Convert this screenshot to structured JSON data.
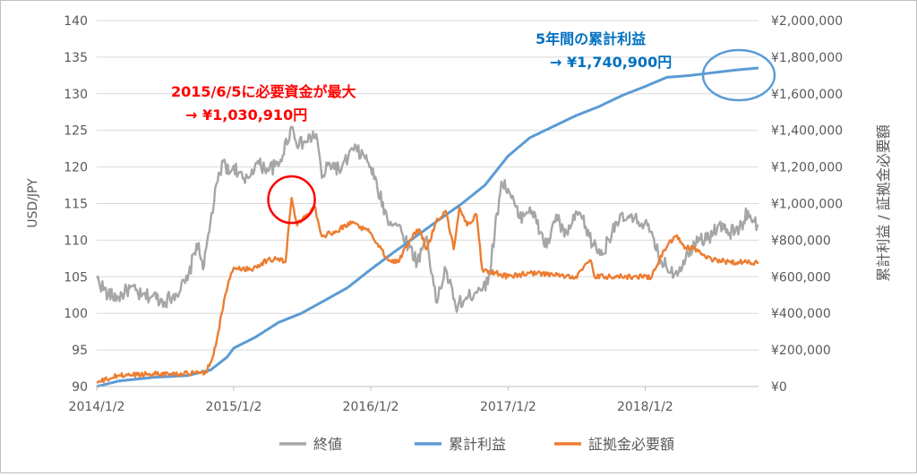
{
  "chart_data": {
    "type": "line",
    "x_ticks": [
      "2014/1/2",
      "2015/1/2",
      "2016/1/2",
      "2017/1/2",
      "2018/1/2"
    ],
    "x_range": [
      "2014-01-02",
      "2018-10-31"
    ],
    "y_left": {
      "label": "USD/JPY",
      "range": [
        90,
        140
      ],
      "ticks": [
        "90",
        "95",
        "100",
        "105",
        "110",
        "115",
        "120",
        "125",
        "130",
        "135",
        "140"
      ]
    },
    "y_right": {
      "label": "累計利益 / 証拠金必要額",
      "range": [
        0,
        2000000
      ],
      "ticks": [
        "¥0",
        "¥200,000",
        "¥400,000",
        "¥600,000",
        "¥800,000",
        "¥1,000,000",
        "¥1,200,000",
        "¥1,400,000",
        "¥1,600,000",
        "¥1,800,000",
        "¥2,000,000"
      ]
    },
    "grid": true,
    "legend_position": "bottom",
    "series": [
      {
        "name": "終値",
        "axis": "left",
        "color": "#a6a6a6",
        "points": [
          [
            "2014-01-02",
            104.8
          ],
          [
            "2014-02-01",
            102.5
          ],
          [
            "2014-03-01",
            102.2
          ],
          [
            "2014-04-01",
            103.5
          ],
          [
            "2014-05-01",
            102.3
          ],
          [
            "2014-06-01",
            102.4
          ],
          [
            "2014-07-01",
            101.6
          ],
          [
            "2014-08-01",
            102.7
          ],
          [
            "2014-09-01",
            104.5
          ],
          [
            "2014-09-25",
            109.5
          ],
          [
            "2014-10-15",
            106.5
          ],
          [
            "2014-11-01",
            112.5
          ],
          [
            "2014-11-20",
            118.0
          ],
          [
            "2014-12-08",
            121.0
          ],
          [
            "2014-12-20",
            119.0
          ],
          [
            "2015-01-02",
            120.2
          ],
          [
            "2015-02-01",
            117.8
          ],
          [
            "2015-03-01",
            120.5
          ],
          [
            "2015-04-01",
            119.8
          ],
          [
            "2015-05-01",
            120.1
          ],
          [
            "2015-06-05",
            125.5
          ],
          [
            "2015-06-25",
            123.0
          ],
          [
            "2015-07-15",
            123.5
          ],
          [
            "2015-08-10",
            124.5
          ],
          [
            "2015-08-25",
            118.5
          ],
          [
            "2015-09-15",
            120.5
          ],
          [
            "2015-10-15",
            119.5
          ],
          [
            "2015-11-15",
            122.5
          ],
          [
            "2015-12-15",
            121.5
          ],
          [
            "2016-01-02",
            120.0
          ],
          [
            "2016-01-20",
            117.0
          ],
          [
            "2016-02-15",
            113.0
          ],
          [
            "2016-03-15",
            112.0
          ],
          [
            "2016-04-15",
            109.0
          ],
          [
            "2016-05-05",
            107.0
          ],
          [
            "2016-05-30",
            110.5
          ],
          [
            "2016-06-24",
            101.5
          ],
          [
            "2016-07-20",
            106.0
          ],
          [
            "2016-08-15",
            101.0
          ],
          [
            "2016-09-15",
            102.0
          ],
          [
            "2016-10-15",
            103.5
          ],
          [
            "2016-11-09",
            104.0
          ],
          [
            "2016-12-15",
            118.0
          ],
          [
            "2017-01-02",
            117.0
          ],
          [
            "2017-02-01",
            113.0
          ],
          [
            "2017-03-01",
            114.5
          ],
          [
            "2017-04-15",
            109.0
          ],
          [
            "2017-05-10",
            113.5
          ],
          [
            "2017-06-01",
            110.5
          ],
          [
            "2017-07-10",
            113.8
          ],
          [
            "2017-08-15",
            109.5
          ],
          [
            "2017-09-10",
            108.0
          ],
          [
            "2017-10-15",
            112.5
          ],
          [
            "2017-11-15",
            113.0
          ],
          [
            "2017-12-15",
            112.5
          ],
          [
            "2018-01-02",
            112.5
          ],
          [
            "2018-02-15",
            107.0
          ],
          [
            "2018-03-23",
            105.5
          ],
          [
            "2018-04-20",
            107.5
          ],
          [
            "2018-05-20",
            110.5
          ],
          [
            "2018-06-15",
            110.0
          ],
          [
            "2018-07-15",
            112.0
          ],
          [
            "2018-08-15",
            111.0
          ],
          [
            "2018-09-10",
            111.5
          ],
          [
            "2018-10-03",
            114.0
          ],
          [
            "2018-10-20",
            112.5
          ],
          [
            "2018-10-31",
            112.0
          ]
        ]
      },
      {
        "name": "累計利益",
        "axis": "right",
        "color": "#5b9bd5",
        "points": [
          [
            "2014-01-02",
            0
          ],
          [
            "2014-03-01",
            30000
          ],
          [
            "2014-06-01",
            50000
          ],
          [
            "2014-09-01",
            60000
          ],
          [
            "2014-11-01",
            90000
          ],
          [
            "2014-12-15",
            160000
          ],
          [
            "2015-01-02",
            210000
          ],
          [
            "2015-03-01",
            270000
          ],
          [
            "2015-05-01",
            350000
          ],
          [
            "2015-07-01",
            400000
          ],
          [
            "2015-09-01",
            470000
          ],
          [
            "2015-11-01",
            540000
          ],
          [
            "2016-01-02",
            640000
          ],
          [
            "2016-03-01",
            730000
          ],
          [
            "2016-05-01",
            820000
          ],
          [
            "2016-07-01",
            910000
          ],
          [
            "2016-09-01",
            1000000
          ],
          [
            "2016-11-01",
            1100000
          ],
          [
            "2017-01-02",
            1260000
          ],
          [
            "2017-03-01",
            1360000
          ],
          [
            "2017-05-01",
            1420000
          ],
          [
            "2017-07-01",
            1480000
          ],
          [
            "2017-09-01",
            1530000
          ],
          [
            "2017-11-01",
            1590000
          ],
          [
            "2018-01-02",
            1640000
          ],
          [
            "2018-03-01",
            1690000
          ],
          [
            "2018-05-01",
            1700000
          ],
          [
            "2018-07-01",
            1715000
          ],
          [
            "2018-09-01",
            1730000
          ],
          [
            "2018-10-31",
            1740900
          ]
        ]
      },
      {
        "name": "証拠金必要額",
        "axis": "right",
        "color": "#ed7d31",
        "points": [
          [
            "2014-01-02",
            20000
          ],
          [
            "2014-03-01",
            60000
          ],
          [
            "2014-06-01",
            70000
          ],
          [
            "2014-09-01",
            70000
          ],
          [
            "2014-10-20",
            80000
          ],
          [
            "2014-11-01",
            130000
          ],
          [
            "2014-11-15",
            220000
          ],
          [
            "2014-12-01",
            400000
          ],
          [
            "2014-12-20",
            580000
          ],
          [
            "2015-01-02",
            650000
          ],
          [
            "2015-02-15",
            640000
          ],
          [
            "2015-04-01",
            690000
          ],
          [
            "2015-05-01",
            700000
          ],
          [
            "2015-05-20",
            680000
          ],
          [
            "2015-06-05",
            1030910
          ],
          [
            "2015-06-20",
            880000
          ],
          [
            "2015-07-15",
            940000
          ],
          [
            "2015-08-05",
            990000
          ],
          [
            "2015-08-25",
            820000
          ],
          [
            "2015-10-01",
            850000
          ],
          [
            "2015-11-15",
            900000
          ],
          [
            "2015-12-15",
            860000
          ],
          [
            "2016-01-02",
            840000
          ],
          [
            "2016-01-20",
            780000
          ],
          [
            "2016-02-15",
            700000
          ],
          [
            "2016-03-15",
            680000
          ],
          [
            "2016-04-15",
            800000
          ],
          [
            "2016-05-10",
            860000
          ],
          [
            "2016-05-30",
            750000
          ],
          [
            "2016-06-24",
            900000
          ],
          [
            "2016-07-20",
            960000
          ],
          [
            "2016-08-10",
            750000
          ],
          [
            "2016-08-25",
            980000
          ],
          [
            "2016-09-15",
            880000
          ],
          [
            "2016-10-10",
            940000
          ],
          [
            "2016-10-25",
            640000
          ],
          [
            "2016-12-01",
            620000
          ],
          [
            "2017-01-02",
            600000
          ],
          [
            "2017-03-01",
            620000
          ],
          [
            "2017-05-01",
            610000
          ],
          [
            "2017-07-01",
            600000
          ],
          [
            "2017-08-10",
            690000
          ],
          [
            "2017-08-20",
            600000
          ],
          [
            "2017-10-01",
            600000
          ],
          [
            "2017-12-01",
            600000
          ],
          [
            "2018-01-20",
            600000
          ],
          [
            "2018-02-10",
            700000
          ],
          [
            "2018-03-05",
            780000
          ],
          [
            "2018-03-25",
            820000
          ],
          [
            "2018-04-20",
            760000
          ],
          [
            "2018-05-20",
            750000
          ],
          [
            "2018-06-15",
            700000
          ],
          [
            "2018-08-15",
            680000
          ],
          [
            "2018-10-31",
            680000
          ]
        ]
      }
    ],
    "annotations": [
      {
        "lines": [
          "2015/6/5に必要資金が最大",
          "→ ¥1,030,910円"
        ],
        "color": "#ff0000",
        "target": {
          "date": "2015-06-05",
          "value": 1030910,
          "axis": "right"
        },
        "marker": "red circle"
      },
      {
        "lines": [
          "5年間の累計利益",
          "→ ¥1,740,900円"
        ],
        "color": "#0070c0",
        "target": {
          "date": "2018-09-25",
          "value": 1740900,
          "axis": "right"
        },
        "marker": "blue ellipse"
      }
    ]
  }
}
